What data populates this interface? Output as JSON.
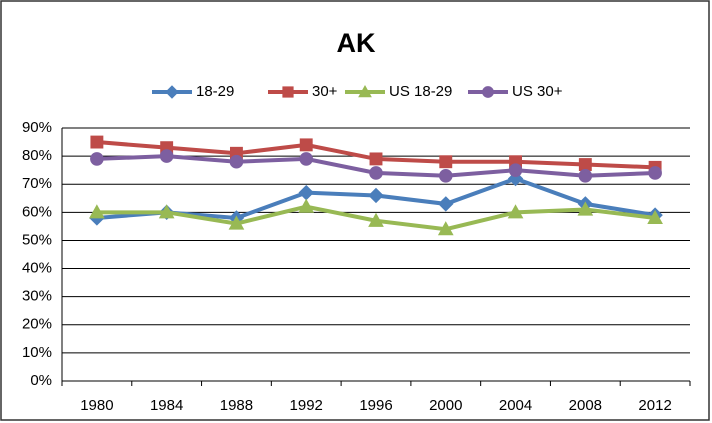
{
  "chart_data": {
    "type": "line",
    "title": "AK",
    "categories": [
      "1980",
      "1984",
      "1988",
      "1992",
      "1996",
      "2000",
      "2004",
      "2008",
      "2012"
    ],
    "series": [
      {
        "name": "18-29",
        "color": "#4a7ebb",
        "marker": "diamond",
        "values": [
          58,
          60,
          58,
          67,
          66,
          63,
          72,
          63,
          59
        ]
      },
      {
        "name": "30+",
        "color": "#be4b48",
        "marker": "square",
        "values": [
          85,
          83,
          81,
          84,
          79,
          78,
          78,
          77,
          76
        ]
      },
      {
        "name": "US 18-29",
        "color": "#98b954",
        "marker": "triangle",
        "values": [
          60,
          60,
          56,
          62,
          57,
          54,
          60,
          61,
          58
        ]
      },
      {
        "name": "US 30+",
        "color": "#7d5fa0",
        "marker": "circle",
        "values": [
          79,
          80,
          78,
          79,
          74,
          73,
          75,
          73,
          74
        ]
      }
    ],
    "ylim": [
      0,
      90
    ],
    "yticks": [
      {
        "value": 0,
        "label": "0%"
      },
      {
        "value": 10,
        "label": "10%"
      },
      {
        "value": 20,
        "label": "20%"
      },
      {
        "value": 30,
        "label": "30%"
      },
      {
        "value": 40,
        "label": "40%"
      },
      {
        "value": 50,
        "label": "50%"
      },
      {
        "value": 60,
        "label": "60%"
      },
      {
        "value": 70,
        "label": "70%"
      },
      {
        "value": 80,
        "label": "80%"
      },
      {
        "value": 90,
        "label": "90%"
      }
    ],
    "grid": true,
    "legend": "top"
  }
}
